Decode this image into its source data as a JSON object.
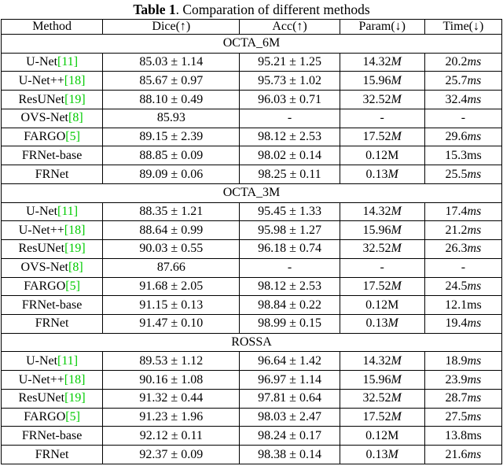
{
  "title": {
    "bold_part": "Table 1",
    "rest": ". Comparation of different methods"
  },
  "columns": [
    "Method",
    "Dice(↑)",
    "Acc(↑)",
    "Param(↓)",
    "Time(↓)"
  ],
  "colors": {
    "citation_green": "#00cc00",
    "border": "#000000",
    "text": "#000000",
    "background": "#ffffff"
  },
  "sections": [
    {
      "name": "OCTA_6M",
      "rows": [
        {
          "method": "U-Net",
          "cite": "[11]",
          "dice": "85.03 ± 1.14",
          "dice_bold": false,
          "acc": "95.21 ± 1.25",
          "acc_bold": false,
          "param": "14.32",
          "param_unit": "M",
          "param_bold": false,
          "time": "20.2",
          "time_unit": "ms",
          "time_bold": false
        },
        {
          "method": "U-Net++",
          "cite": "[18]",
          "dice": "85.67 ± 0.97",
          "dice_bold": false,
          "acc": "95.73 ± 1.02",
          "acc_bold": false,
          "param": "15.96",
          "param_unit": "M",
          "param_bold": false,
          "time": "25.7",
          "time_unit": "ms",
          "time_bold": false
        },
        {
          "method": "ResUNet",
          "cite": "[19]",
          "dice": "88.10 ± 0.49",
          "dice_bold": false,
          "acc": "96.03 ± 0.71",
          "acc_bold": false,
          "param": "32.52",
          "param_unit": "M",
          "param_bold": false,
          "time": "32.4",
          "time_unit": "ms",
          "time_bold": false
        },
        {
          "method": "OVS-Net",
          "cite": "[8]",
          "dice": "85.93",
          "dice_bold": false,
          "acc": "-",
          "acc_bold": false,
          "param": "-",
          "param_unit": "",
          "param_bold": false,
          "time": "-",
          "time_unit": "",
          "time_bold": false
        },
        {
          "method": "FARGO",
          "cite": "[5]",
          "dice": "89.15 ± 2.39",
          "dice_bold": true,
          "acc": "98.12 ± 2.53",
          "acc_bold": false,
          "param": "17.52",
          "param_unit": "M",
          "param_bold": false,
          "time": "29.6",
          "time_unit": "ms",
          "time_bold": false
        },
        {
          "method": "FRNet-base",
          "cite": "",
          "dice": "88.85 ± 0.09",
          "dice_bold": false,
          "acc": "98.02 ± 0.14",
          "acc_bold": false,
          "param": "0.12",
          "param_unit": "M",
          "param_bold": true,
          "time": "15.3",
          "time_unit": "ms",
          "time_bold": true
        },
        {
          "method": "FRNet",
          "cite": "",
          "dice": "89.09 ± 0.06",
          "dice_bold": true,
          "acc": "98.25 ± 0.11",
          "acc_bold": true,
          "param": "0.13",
          "param_unit": "M",
          "param_bold": false,
          "time": "25.5",
          "time_unit": "ms",
          "time_bold": false
        }
      ]
    },
    {
      "name": "OCTA_3M",
      "rows": [
        {
          "method": "U-Net",
          "cite": "[11]",
          "dice": "88.35 ± 1.21",
          "dice_bold": false,
          "acc": "95.45 ± 1.33",
          "acc_bold": false,
          "param": "14.32",
          "param_unit": "M",
          "param_bold": false,
          "time": "17.4",
          "time_unit": "ms",
          "time_bold": false
        },
        {
          "method": "U-Net++",
          "cite": "[18]",
          "dice": "88.64 ± 0.99",
          "dice_bold": false,
          "acc": "95.98 ± 1.27",
          "acc_bold": false,
          "param": "15.96",
          "param_unit": "M",
          "param_bold": false,
          "time": "21.2",
          "time_unit": "ms",
          "time_bold": false
        },
        {
          "method": "ResUNet",
          "cite": "[19]",
          "dice": "90.03 ± 0.55",
          "dice_bold": false,
          "acc": "96.18 ± 0.74",
          "acc_bold": false,
          "param": "32.52",
          "param_unit": "M",
          "param_bold": false,
          "time": "26.3",
          "time_unit": "ms",
          "time_bold": false
        },
        {
          "method": "OVS-Net",
          "cite": "[8]",
          "dice": "87.66",
          "dice_bold": false,
          "acc": "-",
          "acc_bold": false,
          "param": "-",
          "param_unit": "",
          "param_bold": false,
          "time": "-",
          "time_unit": "",
          "time_bold": false
        },
        {
          "method": "FARGO",
          "cite": "[5]",
          "dice": "91.68 ± 2.05",
          "dice_bold": false,
          "acc": "98.12 ± 2.53",
          "acc_bold": false,
          "param": "17.52",
          "param_unit": "M",
          "param_bold": false,
          "time": "24.5",
          "time_unit": "ms",
          "time_bold": false
        },
        {
          "method": "FRNet-base",
          "cite": "",
          "dice": "91.15 ± 0.13",
          "dice_bold": false,
          "acc": "98.84 ± 0.22",
          "acc_bold": false,
          "param": "0.12",
          "param_unit": "M",
          "param_bold": true,
          "time": "12.1",
          "time_unit": "ms",
          "time_bold": true
        },
        {
          "method": "FRNet",
          "cite": "",
          "dice": "91.47 ± 0.10",
          "dice_bold": true,
          "acc": "98.99 ± 0.15",
          "acc_bold": true,
          "param": "0.13",
          "param_unit": "M",
          "param_bold": false,
          "time": "19.4",
          "time_unit": "ms",
          "time_bold": false
        }
      ]
    },
    {
      "name": "ROSSA",
      "rows": [
        {
          "method": "U-Net",
          "cite": "[11]",
          "dice": "89.53 ± 1.12",
          "dice_bold": false,
          "acc": "96.64 ± 1.42",
          "acc_bold": false,
          "param": "14.32",
          "param_unit": "M",
          "param_bold": false,
          "time": "18.9",
          "time_unit": "ms",
          "time_bold": false
        },
        {
          "method": "U-Net++",
          "cite": "[18]",
          "dice": "90.16 ± 1.08",
          "dice_bold": false,
          "acc": "96.97 ± 1.14",
          "acc_bold": false,
          "param": "15.96",
          "param_unit": "M",
          "param_bold": false,
          "time": "23.9",
          "time_unit": "ms",
          "time_bold": false
        },
        {
          "method": "ResUNet",
          "cite": "[19]",
          "dice": "91.32 ± 0.44",
          "dice_bold": false,
          "acc": "97.81 ± 0.64",
          "acc_bold": false,
          "param": "32.52",
          "param_unit": "M",
          "param_bold": false,
          "time": "28.7",
          "time_unit": "ms",
          "time_bold": false
        },
        {
          "method": "FARGO",
          "cite": "[5]",
          "dice": "91.23 ± 1.96",
          "dice_bold": false,
          "acc": "98.03 ± 2.47",
          "acc_bold": false,
          "param": "17.52",
          "param_unit": "M",
          "param_bold": false,
          "time": "27.5",
          "time_unit": "ms",
          "time_bold": false
        },
        {
          "method": "FRNet-base",
          "cite": "",
          "dice": "92.12 ± 0.11",
          "dice_bold": false,
          "acc": "98.24 ± 0.17",
          "acc_bold": false,
          "param": "0.12",
          "param_unit": "M",
          "param_bold": true,
          "time": "13.8",
          "time_unit": "ms",
          "time_bold": true
        },
        {
          "method": "FRNet",
          "cite": "",
          "dice": "92.37 ± 0.09",
          "dice_bold": true,
          "acc": "98.38 ± 0.14",
          "acc_bold": true,
          "param": "0.13",
          "param_unit": "M",
          "param_bold": false,
          "time": "21.6",
          "time_unit": "ms",
          "time_bold": false
        }
      ]
    }
  ]
}
